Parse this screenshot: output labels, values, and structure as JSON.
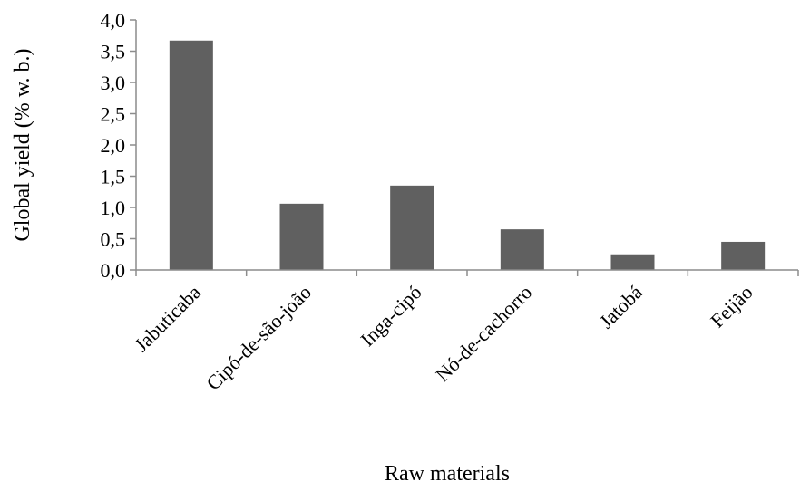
{
  "chart_data": {
    "type": "bar",
    "title": "",
    "xlabel": "Raw materials",
    "ylabel": "Global yield (% w. b.)",
    "categories": [
      "Jabuticaba",
      "Cipó-de-são-joão",
      "Inga-cipó",
      "Nó-de-cachorro",
      "Jatobá",
      "Feijão"
    ],
    "values": [
      3.67,
      1.06,
      1.35,
      0.65,
      0.25,
      0.45
    ],
    "ylim": [
      0,
      4
    ],
    "yticks": [
      "0,0",
      "0,5",
      "1,0",
      "1,5",
      "2,0",
      "2,5",
      "3,0",
      "3,5",
      "4,0"
    ],
    "grid": false,
    "bar_color": "#606060",
    "axis_color": "#8c8c8c"
  }
}
